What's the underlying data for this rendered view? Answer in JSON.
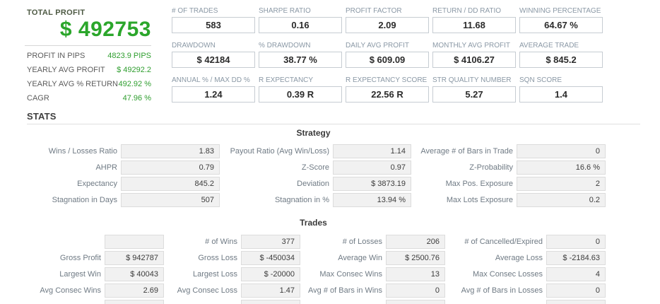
{
  "summary": {
    "title": "TOTAL PROFIT",
    "total_profit": "$ 492753",
    "accent_green": "#2ba62b",
    "rows": [
      {
        "label": "PROFIT IN PIPS",
        "value": "4823.9 PIPS"
      },
      {
        "label": "YEARLY AVG PROFIT",
        "value": "$ 49292.2"
      },
      {
        "label": "YEARLY AVG % RETURN",
        "value": "492.92 %"
      },
      {
        "label": "CAGR",
        "value": "47.96 %"
      }
    ]
  },
  "metrics": [
    {
      "label": "# OF TRADES",
      "value": "583"
    },
    {
      "label": "SHARPE RATIO",
      "value": "0.16"
    },
    {
      "label": "PROFIT FACTOR",
      "value": "2.09"
    },
    {
      "label": "RETURN / DD RATIO",
      "value": "11.68"
    },
    {
      "label": "WINNING PERCENTAGE",
      "value": "64.67 %"
    },
    {
      "label": "DRAWDOWN",
      "value": "$ 42184"
    },
    {
      "label": "% DRAWDOWN",
      "value": "38.77 %"
    },
    {
      "label": "DAILY AVG PROFIT",
      "value": "$ 609.09"
    },
    {
      "label": "MONTHLY AVG PROFIT",
      "value": "$ 4106.27"
    },
    {
      "label": "AVERAGE TRADE",
      "value": "$ 845.2"
    },
    {
      "label": "ANNUAL % / MAX DD %",
      "value": "1.24"
    },
    {
      "label": "R EXPECTANCY",
      "value": "0.39 R"
    },
    {
      "label": "R EXPECTANCY SCORE",
      "value": "22.56 R"
    },
    {
      "label": "STR QUALITY NUMBER",
      "value": "5.27"
    },
    {
      "label": "SQN SCORE",
      "value": "1.4"
    }
  ],
  "stats_header": "STATS",
  "strategy": {
    "title": "Strategy",
    "pairs": [
      [
        {
          "label": "Wins / Losses Ratio",
          "value": "1.83"
        },
        {
          "label": "Payout Ratio (Avg Win/Loss)",
          "value": "1.14"
        },
        {
          "label": "Average # of Bars in Trade",
          "value": "0"
        }
      ],
      [
        {
          "label": "AHPR",
          "value": "0.79"
        },
        {
          "label": "Z-Score",
          "value": "0.97"
        },
        {
          "label": "Z-Probability",
          "value": "16.6 %"
        }
      ],
      [
        {
          "label": "Expectancy",
          "value": "845.2"
        },
        {
          "label": "Deviation",
          "value": "$ 3873.19"
        },
        {
          "label": "Max Pos. Exposure",
          "value": "2"
        }
      ],
      [
        {
          "label": "Stagnation in Days",
          "value": "507"
        },
        {
          "label": "Stagnation in %",
          "value": "13.94 %"
        },
        {
          "label": "Max Lots Exposure",
          "value": "0.2"
        }
      ]
    ]
  },
  "trades": {
    "title": "Trades",
    "pairs": [
      [
        {
          "label": "",
          "value": ""
        },
        {
          "label": "# of Wins",
          "value": "377"
        },
        {
          "label": "# of Losses",
          "value": "206"
        },
        {
          "label": "# of Cancelled/Expired",
          "value": "0"
        }
      ],
      [
        {
          "label": "Gross Profit",
          "value": "$ 942787"
        },
        {
          "label": "Gross Loss",
          "value": "$ -450034"
        },
        {
          "label": "Average Win",
          "value": "$ 2500.76"
        },
        {
          "label": "Average Loss",
          "value": "$ -2184.63"
        }
      ],
      [
        {
          "label": "Largest Win",
          "value": "$ 40043"
        },
        {
          "label": "Largest Loss",
          "value": "$ -20000"
        },
        {
          "label": "Max Consec Wins",
          "value": "13"
        },
        {
          "label": "Max Consec Losses",
          "value": "4"
        }
      ],
      [
        {
          "label": "Avg Consec Wins",
          "value": "2.69"
        },
        {
          "label": "Avg Consec Loss",
          "value": "1.47"
        },
        {
          "label": "Avg # of Bars in Wins",
          "value": "0"
        },
        {
          "label": "Avg # of Bars in Losses",
          "value": "0"
        }
      ]
    ]
  }
}
